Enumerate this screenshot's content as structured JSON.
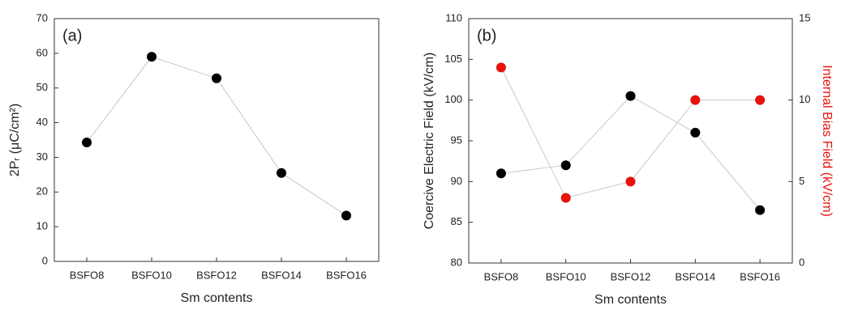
{
  "chart_data": [
    {
      "type": "line",
      "annotation": "(a)",
      "xlabel": "Sm contents",
      "ylabel": "2Pᵣ (μC/cm²)",
      "categories": [
        "BSFO8",
        "BSFO10",
        "BSFO12",
        "BSFO14",
        "BSFO16"
      ],
      "series": [
        {
          "color": "#000000",
          "values": [
            34.3,
            59,
            52.8,
            25.5,
            13.2
          ]
        }
      ],
      "ylim": [
        0,
        70
      ],
      "yticks": [
        0,
        10,
        20,
        30,
        40,
        50,
        60,
        70
      ]
    },
    {
      "type": "line",
      "annotation": "(b)",
      "xlabel": "Sm contents",
      "ylabel": "Coercive Electric Field (kV/cm)",
      "y2label": "Internal Bias Field (kV/cm)",
      "categories": [
        "BSFO8",
        "BSFO10",
        "BSFO12",
        "BSFO14",
        "BSFO16"
      ],
      "series": [
        {
          "color": "#000000",
          "values": [
            91,
            92,
            100.5,
            96,
            86.5
          ]
        },
        {
          "color": "#e8120c",
          "axis": "y2",
          "values": [
            12,
            4,
            5,
            10,
            10
          ]
        }
      ],
      "ylim": [
        80,
        110
      ],
      "yticks": [
        80,
        85,
        90,
        95,
        100,
        105,
        110
      ],
      "y2lim": [
        0,
        15
      ],
      "y2ticks": [
        0,
        5,
        10,
        15
      ]
    }
  ]
}
